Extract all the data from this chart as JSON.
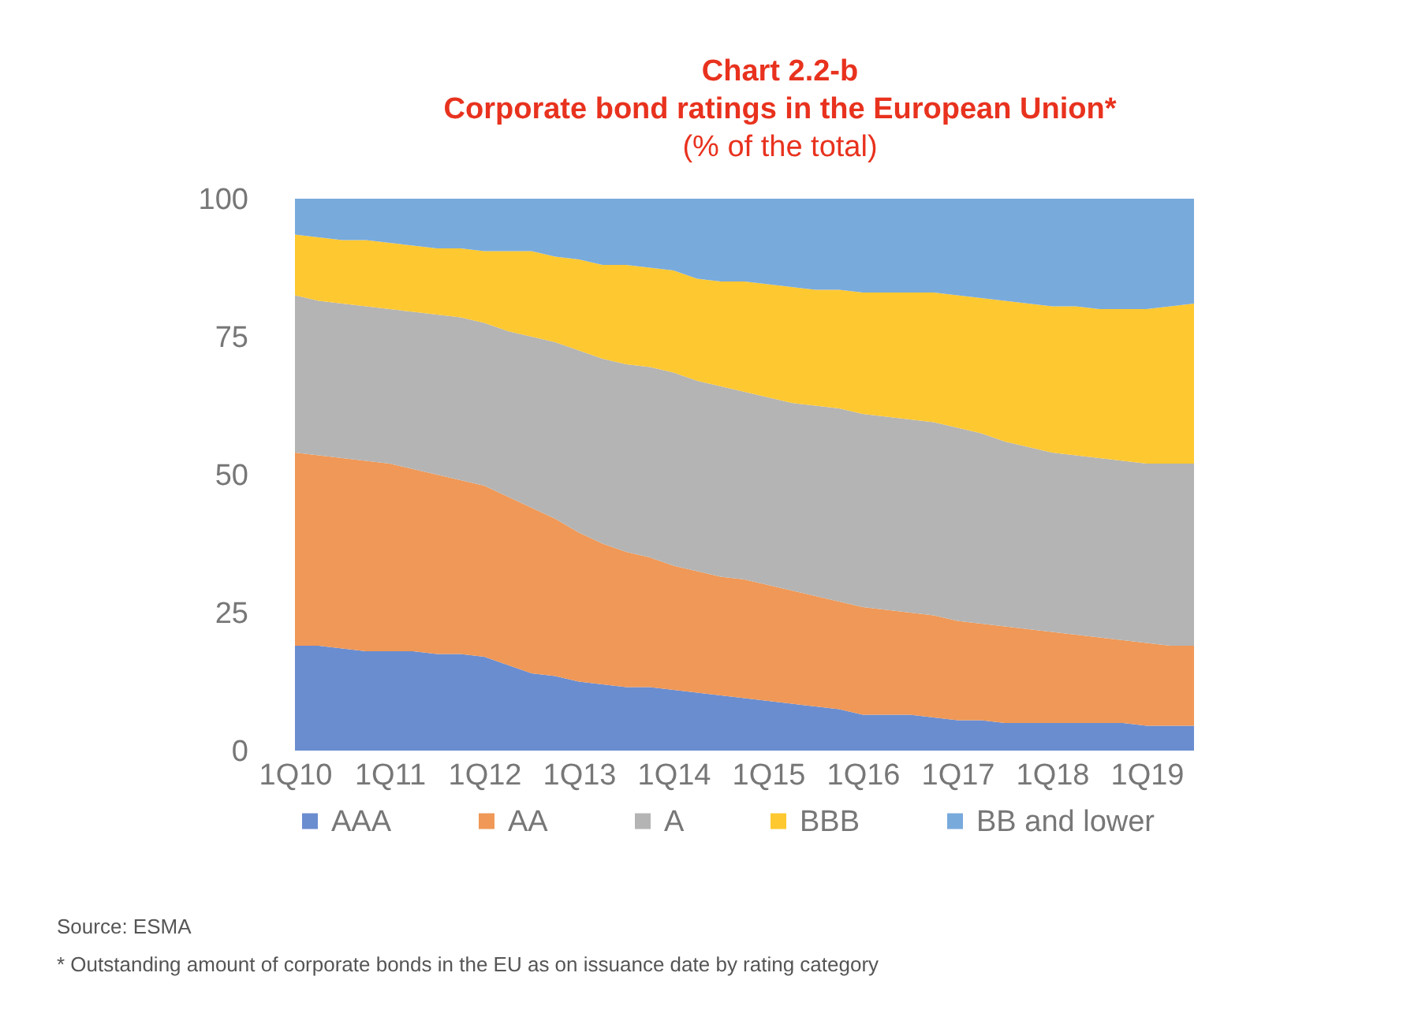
{
  "chart_data": {
    "type": "area",
    "title": "Chart 2.2-b\nCorporate bond ratings in the European Union*",
    "subtitle": "(% of the total)",
    "categories": [
      "1Q10",
      null,
      null,
      null,
      "1Q11",
      null,
      null,
      null,
      "1Q12",
      null,
      null,
      null,
      "1Q13",
      null,
      null,
      null,
      "1Q14",
      null,
      null,
      null,
      "1Q15",
      null,
      null,
      null,
      "1Q16",
      null,
      null,
      null,
      "1Q17",
      null,
      null,
      null,
      "1Q18",
      null,
      null,
      null,
      "1Q19",
      null,
      null
    ],
    "stacked": true,
    "series": [
      {
        "name": "AAA",
        "color": "#6a8dd0",
        "values": [
          19,
          19,
          18.5,
          18,
          18,
          18,
          17.5,
          17.5,
          17,
          15.5,
          14,
          13.5,
          12.5,
          12,
          11.5,
          11.5,
          11,
          10.5,
          10,
          9.5,
          9,
          8.5,
          8,
          7.5,
          6.5,
          6.5,
          6.5,
          6,
          5.5,
          5.5,
          5,
          5,
          5,
          5,
          5,
          5,
          4.5,
          4.5,
          4.5
        ]
      },
      {
        "name": "AA",
        "color": "#ef9857",
        "values": [
          35,
          34.5,
          34.5,
          34.5,
          34,
          33,
          32.5,
          31.5,
          31,
          30.5,
          30,
          28.5,
          27,
          25.5,
          24.5,
          23.5,
          22.5,
          22,
          21.5,
          21.5,
          21,
          20.5,
          20,
          19.5,
          19.5,
          19,
          18.5,
          18.5,
          18,
          17.5,
          17.5,
          17,
          16.5,
          16,
          15.5,
          15,
          15,
          14.5,
          14.5
        ]
      },
      {
        "name": "A",
        "color": "#b4b4b4",
        "values": [
          28.5,
          28,
          28,
          28,
          28,
          28.5,
          29,
          29.5,
          29.5,
          30,
          31,
          32,
          33,
          33.5,
          34,
          34.5,
          35,
          34.5,
          34.5,
          34,
          34,
          34,
          34.5,
          35,
          35,
          35,
          35,
          35,
          35,
          34.5,
          33.5,
          33,
          32.5,
          32.5,
          32.5,
          32.5,
          32.5,
          33,
          33
        ]
      },
      {
        "name": "BBB",
        "color": "#fec831",
        "values": [
          11,
          11.5,
          11.5,
          12,
          12,
          12,
          12,
          12.5,
          13,
          14.5,
          15.5,
          15.5,
          16.5,
          17,
          18,
          18,
          18.5,
          18.5,
          19,
          20,
          20.5,
          21,
          21,
          21.5,
          22,
          22.5,
          23,
          23.5,
          24,
          24.5,
          25.5,
          26,
          26.5,
          27,
          27,
          27.5,
          28,
          28.5,
          29
        ]
      },
      {
        "name": "BB and lower",
        "color": "#78aadc",
        "values": [
          6.5,
          7,
          7.5,
          7.5,
          8,
          8.5,
          9,
          9,
          9.5,
          9.5,
          9.5,
          10.5,
          11,
          12,
          12,
          12.5,
          13,
          14.5,
          15,
          15,
          15.5,
          16,
          16.5,
          16.5,
          17,
          17,
          17,
          17,
          17.5,
          18,
          18.5,
          19,
          19.5,
          19.5,
          20,
          20,
          20,
          19.5,
          19
        ]
      }
    ],
    "ylim": [
      0,
      100
    ],
    "yticks": [
      0,
      25,
      50,
      75,
      100
    ],
    "grid": false,
    "legend": "bottom",
    "annotations": [
      "Source: ESMA",
      "* Outstanding amount of corporate bonds in the EU as on issuance date by rating category"
    ]
  }
}
